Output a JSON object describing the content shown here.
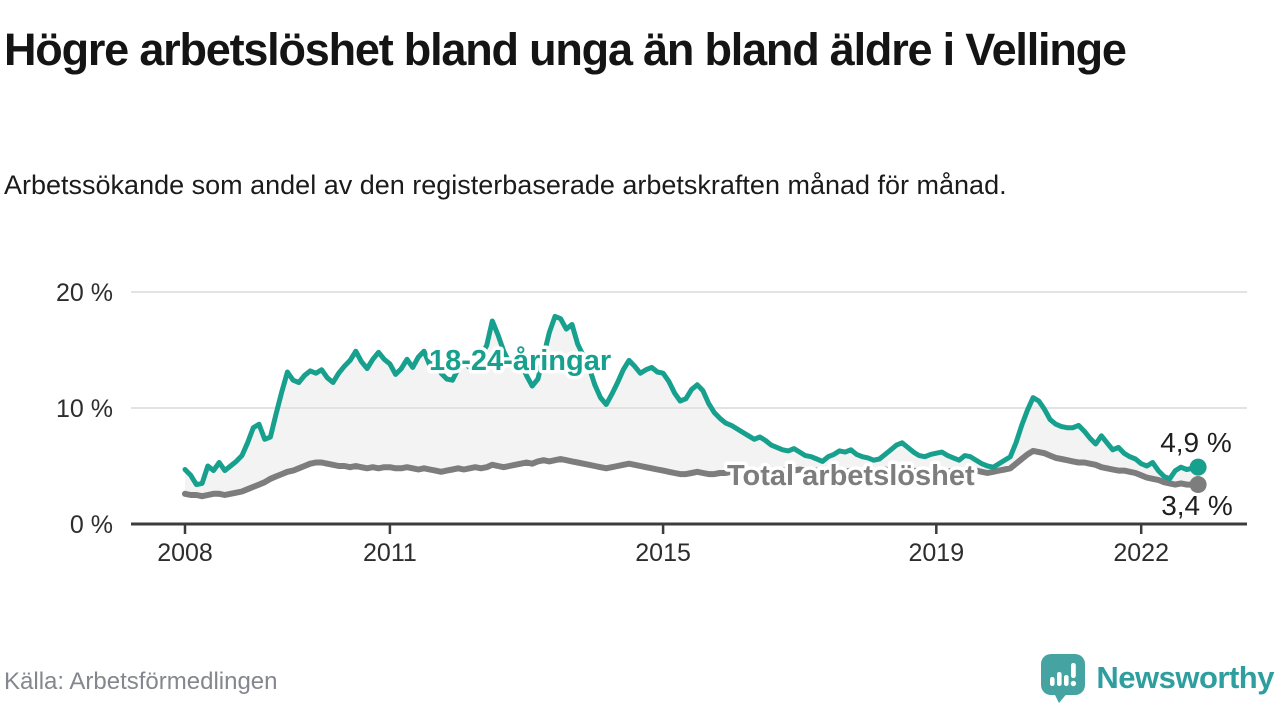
{
  "header": {
    "title": "Högre arbetslöshet bland unga än bland äldre i Vellinge",
    "subtitle": "Arbetssökande som andel av den registerbaserade arbetskraften månad för månad."
  },
  "chart_data": {
    "type": "line",
    "unit": "%",
    "frequency": "monthly",
    "x_start": "2008-01",
    "x_end": "2022-11",
    "ylim": [
      0,
      21.5
    ],
    "grid": true,
    "area_fill_between_series": true,
    "yticks": [
      {
        "value": 0,
        "label": "0 %"
      },
      {
        "value": 10,
        "label": "10 %"
      },
      {
        "value": 20,
        "label": "20 %"
      }
    ],
    "xticks": [
      {
        "value": 2008,
        "label": "2008"
      },
      {
        "value": 2011,
        "label": "2011"
      },
      {
        "value": 2015,
        "label": "2015"
      },
      {
        "value": 2019,
        "label": "2019"
      },
      {
        "value": 2022,
        "label": "2022"
      }
    ],
    "series": [
      {
        "key": "youth-18-24",
        "name": "18-24-åringar",
        "color": "#17a08d",
        "end_label": "4,9 %",
        "last_value": 4.9,
        "values": [
          4.7,
          4.2,
          3.4,
          3.5,
          5.0,
          4.6,
          5.3,
          4.6,
          5.0,
          5.4,
          5.9,
          7.0,
          8.3,
          8.6,
          7.3,
          7.5,
          9.5,
          11.4,
          13.1,
          12.4,
          12.2,
          12.8,
          13.2,
          13.0,
          13.3,
          12.6,
          12.2,
          13.0,
          13.6,
          14.1,
          14.9,
          14.0,
          13.4,
          14.2,
          14.8,
          14.2,
          13.8,
          12.9,
          13.4,
          14.2,
          13.5,
          14.4,
          14.9,
          13.7,
          14.0,
          13.0,
          12.5,
          12.4,
          13.4,
          13.9,
          13.5,
          13.6,
          14.5,
          15.4,
          17.5,
          16.3,
          14.9,
          13.9,
          13.6,
          14.0,
          12.8,
          11.9,
          12.5,
          14.5,
          16.5,
          17.9,
          17.7,
          16.8,
          17.2,
          15.5,
          14.5,
          13.5,
          12.0,
          10.9,
          10.3,
          11.2,
          12.2,
          13.3,
          14.1,
          13.6,
          13.0,
          13.3,
          13.5,
          13.1,
          13.0,
          12.3,
          11.3,
          10.6,
          10.8,
          11.6,
          12.0,
          11.5,
          10.4,
          9.6,
          9.1,
          8.7,
          8.5,
          8.2,
          7.9,
          7.6,
          7.3,
          7.5,
          7.2,
          6.8,
          6.6,
          6.4,
          6.3,
          6.5,
          6.2,
          5.9,
          5.8,
          5.6,
          5.4,
          5.8,
          6.0,
          6.3,
          6.2,
          6.4,
          6.0,
          5.8,
          5.7,
          5.5,
          5.6,
          6.0,
          6.4,
          6.8,
          7.0,
          6.6,
          6.2,
          5.9,
          5.8,
          6.0,
          6.1,
          6.2,
          5.9,
          5.7,
          5.5,
          5.9,
          5.8,
          5.5,
          5.2,
          5.0,
          4.9,
          5.2,
          5.5,
          5.8,
          7.0,
          8.5,
          9.8,
          10.9,
          10.6,
          9.9,
          9.0,
          8.6,
          8.4,
          8.3,
          8.3,
          8.5,
          8.0,
          7.4,
          6.9,
          7.6,
          7.0,
          6.4,
          6.6,
          6.1,
          5.8,
          5.6,
          5.2,
          5.0,
          5.3,
          4.6,
          4.1,
          3.9,
          4.6,
          4.9,
          4.7,
          4.8,
          4.9
        ]
      },
      {
        "key": "total",
        "name": "Total arbetslöshet",
        "color": "#7d7d7d",
        "end_label": "3,4 %",
        "last_value": 3.4,
        "values": [
          2.6,
          2.5,
          2.5,
          2.4,
          2.5,
          2.6,
          2.6,
          2.5,
          2.6,
          2.7,
          2.8,
          3.0,
          3.2,
          3.4,
          3.6,
          3.9,
          4.1,
          4.3,
          4.5,
          4.6,
          4.8,
          5.0,
          5.2,
          5.3,
          5.3,
          5.2,
          5.1,
          5.0,
          5.0,
          4.9,
          5.0,
          4.9,
          4.8,
          4.9,
          4.8,
          4.9,
          4.9,
          4.8,
          4.8,
          4.9,
          4.8,
          4.7,
          4.8,
          4.7,
          4.6,
          4.5,
          4.6,
          4.7,
          4.8,
          4.7,
          4.8,
          4.9,
          4.8,
          4.9,
          5.1,
          5.0,
          4.9,
          5.0,
          5.1,
          5.2,
          5.3,
          5.2,
          5.4,
          5.5,
          5.4,
          5.5,
          5.6,
          5.5,
          5.4,
          5.3,
          5.2,
          5.1,
          5.0,
          4.9,
          4.8,
          4.9,
          5.0,
          5.1,
          5.2,
          5.1,
          5.0,
          4.9,
          4.8,
          4.7,
          4.6,
          4.5,
          4.4,
          4.3,
          4.3,
          4.4,
          4.5,
          4.4,
          4.3,
          4.3,
          4.4,
          4.4,
          4.5,
          4.4,
          4.5,
          4.6,
          4.5,
          4.6,
          4.7,
          4.6,
          4.5,
          4.6,
          4.7,
          4.6,
          4.7,
          4.6,
          4.7,
          4.6,
          4.5,
          4.6,
          4.7,
          4.6,
          4.5,
          4.6,
          4.5,
          4.6,
          4.6,
          4.5,
          4.6,
          4.7,
          4.6,
          4.7,
          4.8,
          4.7,
          4.6,
          4.5,
          4.4,
          4.5,
          4.5,
          4.4,
          4.5,
          4.6,
          4.5,
          4.4,
          4.5,
          4.6,
          4.5,
          4.4,
          4.5,
          4.6,
          4.7,
          4.8,
          5.2,
          5.6,
          6.0,
          6.3,
          6.2,
          6.1,
          5.9,
          5.7,
          5.6,
          5.5,
          5.4,
          5.3,
          5.3,
          5.2,
          5.1,
          4.9,
          4.8,
          4.7,
          4.6,
          4.6,
          4.5,
          4.4,
          4.2,
          4.0,
          3.9,
          3.8,
          3.6,
          3.5,
          3.4,
          3.5,
          3.4,
          3.4,
          3.4
        ]
      }
    ]
  },
  "footer": {
    "source": "Källa: Arbetsförmedlingen",
    "brand": "Newsworthy"
  },
  "colors": {
    "accent_teal": "#17a08d",
    "line_gray": "#7d7d7d",
    "area_fill": "#f3f3f3",
    "grid": "#e3e3e3",
    "axis": "#3c3c3c",
    "tick_label": "#2d2d2d",
    "end_label": "#1f1f1f",
    "source_text": "#84878d",
    "logo_bubble": "#45a3a1",
    "wordmark": "#2e9f9e"
  }
}
